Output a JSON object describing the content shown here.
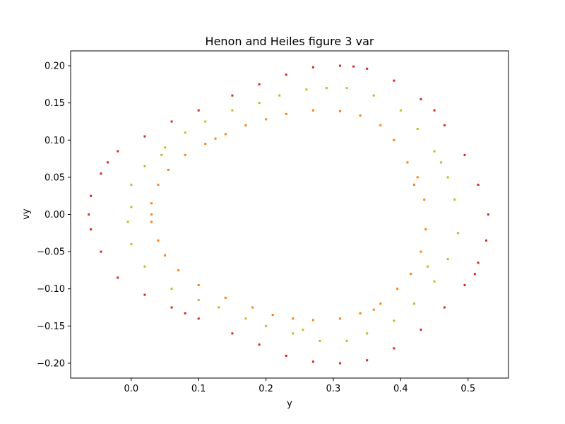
{
  "chart_data": {
    "type": "scatter",
    "title": "Henon and Heiles  figure 3 var",
    "xlabel": "y",
    "ylabel": "vy",
    "xlim": [
      -0.09,
      0.56
    ],
    "ylim": [
      -0.22,
      0.22
    ],
    "x_ticks": [
      0.0,
      0.1,
      0.2,
      0.3,
      0.4,
      0.5
    ],
    "x_tick_labels": [
      "0.0",
      "0.1",
      "0.2",
      "0.3",
      "0.4",
      "0.5"
    ],
    "y_ticks": [
      -0.2,
      -0.15,
      -0.1,
      -0.05,
      0.0,
      0.05,
      0.1,
      0.15,
      0.2
    ],
    "y_tick_labels": [
      "−0.20",
      "−0.15",
      "−0.10",
      "−0.05",
      "0.00",
      "0.05",
      "0.10",
      "0.15",
      "0.20"
    ],
    "grid": false,
    "legend": "none",
    "series": [
      {
        "color": "#d62728",
        "points": [
          [
            0.31,
            0.2
          ],
          [
            0.35,
            0.196
          ],
          [
            0.39,
            0.18
          ],
          [
            0.43,
            0.155
          ],
          [
            0.465,
            0.12
          ],
          [
            0.495,
            0.08
          ],
          [
            0.515,
            0.04
          ],
          [
            0.53,
            0.0
          ],
          [
            0.527,
            -0.035
          ],
          [
            0.515,
            -0.065
          ],
          [
            0.495,
            -0.095
          ],
          [
            0.465,
            -0.125
          ],
          [
            0.43,
            -0.155
          ],
          [
            0.39,
            -0.18
          ],
          [
            0.35,
            -0.196
          ],
          [
            0.31,
            -0.2
          ],
          [
            0.27,
            -0.198
          ],
          [
            0.23,
            -0.19
          ],
          [
            0.19,
            -0.175
          ],
          [
            0.15,
            -0.16
          ],
          [
            0.1,
            -0.14
          ],
          [
            0.06,
            -0.125
          ],
          [
            0.02,
            -0.108
          ],
          [
            -0.02,
            -0.085
          ],
          [
            -0.045,
            -0.05
          ],
          [
            -0.06,
            -0.02
          ],
          [
            -0.063,
            0.0
          ],
          [
            -0.06,
            0.025
          ],
          [
            -0.045,
            0.055
          ],
          [
            -0.02,
            0.085
          ],
          [
            0.02,
            0.105
          ],
          [
            0.06,
            0.125
          ],
          [
            0.1,
            0.14
          ],
          [
            0.15,
            0.16
          ],
          [
            0.19,
            0.175
          ],
          [
            0.23,
            0.188
          ],
          [
            0.27,
            0.198
          ],
          [
            0.33,
            0.199
          ],
          [
            0.45,
            0.14
          ],
          [
            0.51,
            -0.08
          ],
          [
            0.08,
            -0.133
          ],
          [
            -0.035,
            0.07
          ]
        ]
      },
      {
        "color": "#bcbd22",
        "points": [
          [
            0.29,
            0.17
          ],
          [
            0.32,
            0.17
          ],
          [
            0.36,
            0.16
          ],
          [
            0.4,
            0.14
          ],
          [
            0.425,
            0.115
          ],
          [
            0.45,
            0.085
          ],
          [
            0.47,
            0.05
          ],
          [
            0.48,
            0.02
          ],
          [
            0.485,
            -0.025
          ],
          [
            0.47,
            -0.06
          ],
          [
            0.45,
            -0.09
          ],
          [
            0.42,
            -0.12
          ],
          [
            0.39,
            -0.143
          ],
          [
            0.35,
            -0.16
          ],
          [
            0.32,
            -0.17
          ],
          [
            0.28,
            -0.17
          ],
          [
            0.24,
            -0.16
          ],
          [
            0.2,
            -0.15
          ],
          [
            0.17,
            -0.14
          ],
          [
            0.13,
            -0.125
          ],
          [
            0.1,
            -0.115
          ],
          [
            0.06,
            -0.1
          ],
          [
            0.02,
            -0.07
          ],
          [
            0.0,
            -0.04
          ],
          [
            -0.005,
            -0.01
          ],
          [
            0.0,
            0.01
          ],
          [
            0.0,
            0.04
          ],
          [
            0.02,
            0.065
          ],
          [
            0.05,
            0.09
          ],
          [
            0.08,
            0.11
          ],
          [
            0.11,
            0.125
          ],
          [
            0.15,
            0.14
          ],
          [
            0.19,
            0.15
          ],
          [
            0.22,
            0.16
          ],
          [
            0.26,
            0.168
          ],
          [
            0.46,
            0.07
          ],
          [
            0.44,
            -0.07
          ],
          [
            0.255,
            -0.155
          ],
          [
            0.045,
            0.08
          ]
        ]
      },
      {
        "color": "#ff7f0e",
        "points": [
          [
            0.27,
            0.14
          ],
          [
            0.31,
            0.139
          ],
          [
            0.34,
            0.133
          ],
          [
            0.37,
            0.12
          ],
          [
            0.39,
            0.1
          ],
          [
            0.41,
            0.07
          ],
          [
            0.425,
            0.05
          ],
          [
            0.435,
            0.02
          ],
          [
            0.437,
            -0.02
          ],
          [
            0.43,
            -0.05
          ],
          [
            0.415,
            -0.08
          ],
          [
            0.395,
            -0.1
          ],
          [
            0.37,
            -0.12
          ],
          [
            0.34,
            -0.133
          ],
          [
            0.31,
            -0.14
          ],
          [
            0.27,
            -0.142
          ],
          [
            0.24,
            -0.14
          ],
          [
            0.21,
            -0.135
          ],
          [
            0.18,
            -0.125
          ],
          [
            0.14,
            -0.112
          ],
          [
            0.1,
            -0.095
          ],
          [
            0.07,
            -0.075
          ],
          [
            0.05,
            -0.055
          ],
          [
            0.04,
            -0.035
          ],
          [
            0.03,
            -0.01
          ],
          [
            0.03,
            0.0
          ],
          [
            0.03,
            0.015
          ],
          [
            0.04,
            0.04
          ],
          [
            0.055,
            0.06
          ],
          [
            0.08,
            0.08
          ],
          [
            0.11,
            0.095
          ],
          [
            0.14,
            0.108
          ],
          [
            0.17,
            0.12
          ],
          [
            0.2,
            0.128
          ],
          [
            0.23,
            0.135
          ],
          [
            0.36,
            -0.128
          ],
          [
            0.42,
            0.04
          ],
          [
            0.125,
            0.102
          ]
        ]
      }
    ]
  }
}
